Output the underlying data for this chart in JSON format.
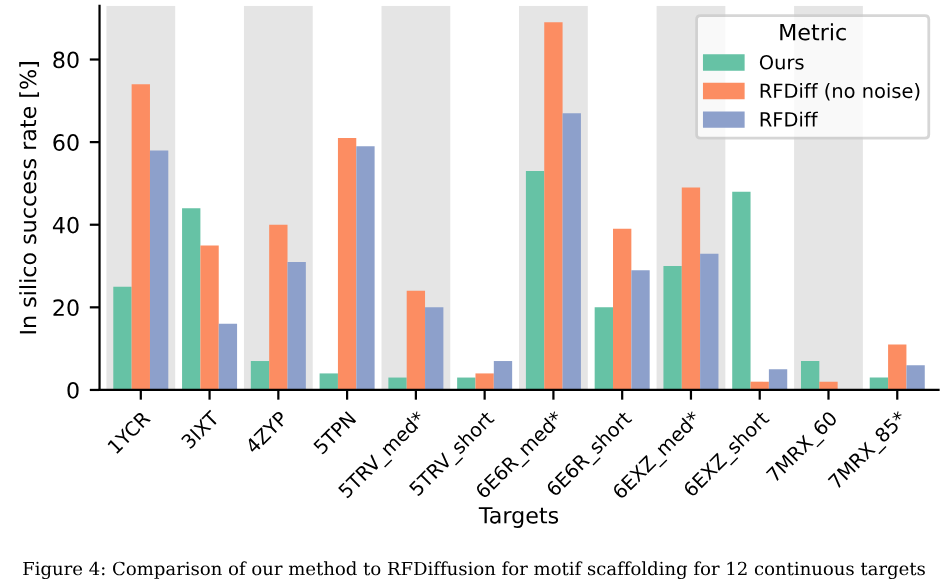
{
  "chart_data": {
    "type": "bar",
    "xlabel": "Targets",
    "ylabel": "In silico success rate [%]",
    "legend_title": "Metric",
    "legend": "top right",
    "categories": [
      "1YCR",
      "3IXT",
      "4ZYP",
      "5TPN",
      "5TRV_med*",
      "5TRV_short",
      "6E6R_med*",
      "6E6R_short",
      "6EXZ_med*",
      "6EXZ_short",
      "7MRX_60",
      "7MRX_85*"
    ],
    "series": [
      {
        "name": "Ours",
        "color": "#66c2a5",
        "values": [
          25,
          44,
          7,
          4,
          3,
          3,
          53,
          20,
          30,
          48,
          7,
          3
        ]
      },
      {
        "name": "RFDiff (no noise)",
        "color": "#fc8d62",
        "values": [
          74,
          35,
          40,
          61,
          24,
          4,
          89,
          39,
          49,
          2,
          2,
          11
        ]
      },
      {
        "name": "RFDiff",
        "color": "#8da0cb",
        "values": [
          58,
          16,
          31,
          59,
          20,
          7,
          67,
          29,
          33,
          5,
          0,
          6
        ]
      }
    ],
    "ylim": [
      0,
      93
    ],
    "yticks": [
      0,
      20,
      40,
      60,
      80
    ],
    "grid": false,
    "bands": [
      {
        "axis": "x",
        "from": "1YCR",
        "to": "1YCR",
        "color": "#e5e5e5"
      },
      {
        "axis": "x",
        "from": "4ZYP",
        "to": "4ZYP",
        "color": "#e5e5e5"
      },
      {
        "axis": "x",
        "from": "5TRV_med*",
        "to": "5TRV_med*",
        "color": "#e5e5e5"
      },
      {
        "axis": "x",
        "from": "6E6R_med*",
        "to": "6E6R_med*",
        "color": "#e5e5e5"
      },
      {
        "axis": "x",
        "from": "6EXZ_med*",
        "to": "6EXZ_med*",
        "color": "#e5e5e5"
      },
      {
        "axis": "x",
        "from": "7MRX_60",
        "to": "7MRX_60",
        "color": "#e5e5e5"
      }
    ],
    "annotations": [
      "Figure 4: Comparison of our method to RFDiffusion for motif scaffolding for 12 continuous targets"
    ]
  }
}
